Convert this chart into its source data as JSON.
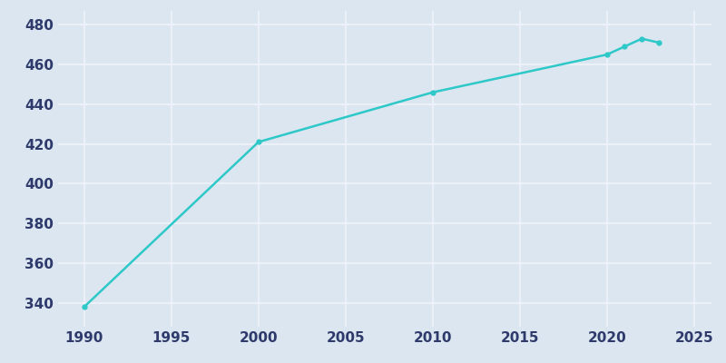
{
  "years": [
    1990,
    2000,
    2010,
    2020,
    2021,
    2022,
    2023
  ],
  "population": [
    338,
    421,
    446,
    465,
    469,
    473,
    471
  ],
  "line_color": "#2ec8c8",
  "marker": "o",
  "marker_size": 3.5,
  "line_width": 1.8,
  "fig_bg_color": "#dce6f0",
  "plot_bg_color": "#dce6f0",
  "grid_color": "#f0f4fa",
  "tick_color": "#2d3a6b",
  "tick_fontsize": 11,
  "xlim": [
    1988.5,
    2026
  ],
  "ylim": [
    328,
    487
  ],
  "xticks": [
    1990,
    1995,
    2000,
    2005,
    2010,
    2015,
    2020,
    2025
  ],
  "yticks": [
    340,
    360,
    380,
    400,
    420,
    440,
    460,
    480
  ]
}
